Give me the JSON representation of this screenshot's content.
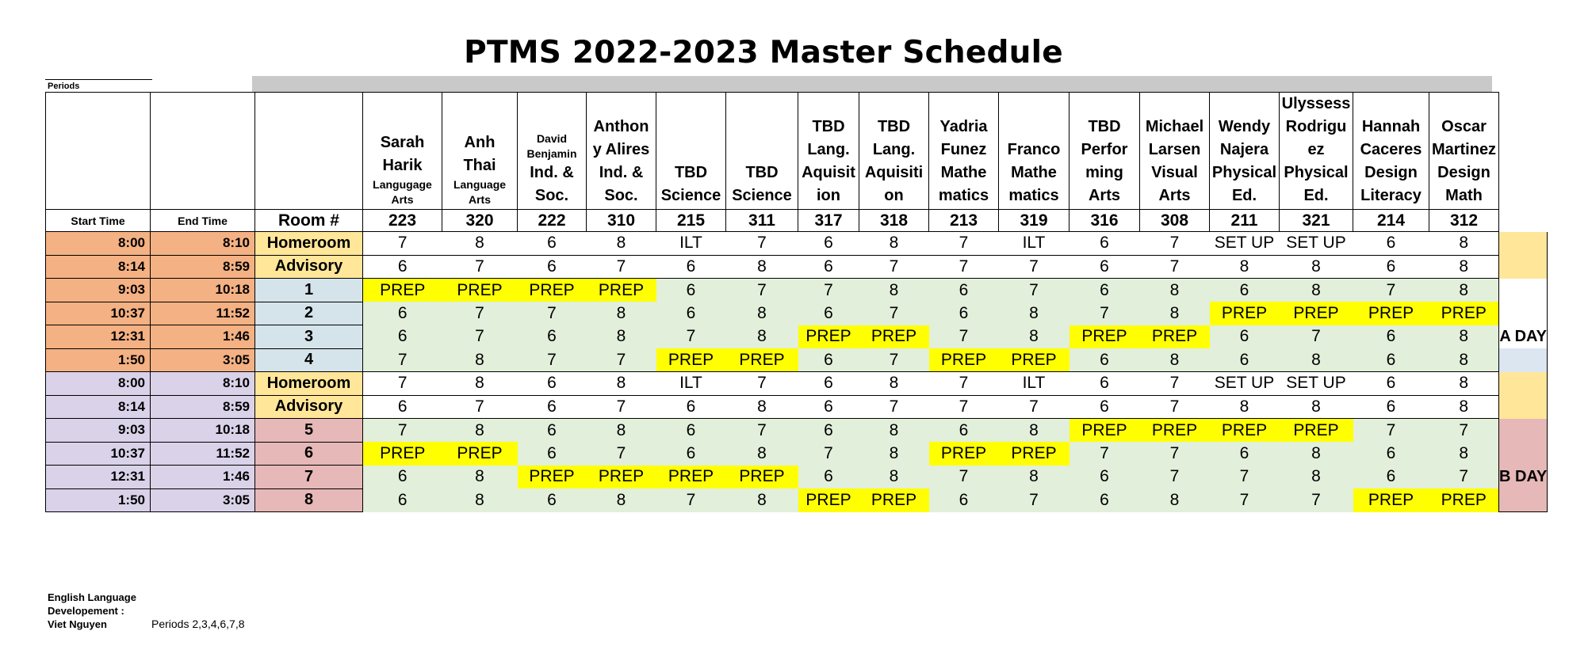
{
  "title": "PTMS 2022-2023 Master Schedule",
  "periods_label": "Periods",
  "headers": {
    "start_time": "Start Time",
    "end_time": "End Time",
    "room": "Room #"
  },
  "teachers": [
    {
      "lines": [
        "Sarah",
        "Harik"
      ],
      "subject": [
        "Langugage",
        "Arts"
      ],
      "room": "223"
    },
    {
      "lines": [
        "Anh",
        "Thai"
      ],
      "subject": [
        "Language",
        "Arts"
      ],
      "room": "320"
    },
    {
      "small_top": "David",
      "small_mid": "Benjamin",
      "lines": [
        "Ind. &",
        "Soc."
      ],
      "room": "222"
    },
    {
      "lines": [
        "Anthon",
        "y Alires",
        "Ind. &",
        "Soc."
      ],
      "room": "310"
    },
    {
      "lines": [
        "TBD",
        "Science"
      ],
      "room": "215"
    },
    {
      "lines": [
        "TBD",
        "Science"
      ],
      "room": "311"
    },
    {
      "lines": [
        "TBD",
        "Lang.",
        "Aquisit",
        "ion"
      ],
      "room": "317"
    },
    {
      "lines": [
        "TBD",
        "Lang.",
        "Aquisiti",
        "on"
      ],
      "room": "318"
    },
    {
      "lines": [
        "Yadria",
        "Funez",
        "Mathe",
        "matics"
      ],
      "room": "213"
    },
    {
      "lines": [
        "Franco",
        "Mathe",
        "matics"
      ],
      "room": "319"
    },
    {
      "lines": [
        "TBD",
        "Perfor",
        "ming",
        "Arts"
      ],
      "room": "316"
    },
    {
      "lines": [
        "Michael",
        "Larsen",
        "Visual",
        "Arts"
      ],
      "room": "308"
    },
    {
      "lines": [
        "Wendy",
        "Najera",
        "Physical",
        "Ed."
      ],
      "room": "211"
    },
    {
      "lines": [
        "Ulyssess",
        "Rodrigu",
        "ez",
        "Physical",
        "Ed."
      ],
      "room": "321"
    },
    {
      "lines": [
        "Hannah",
        "Caceres",
        "Design",
        "Literacy"
      ],
      "room": "214"
    },
    {
      "lines": [
        "Oscar",
        "Martinez",
        "Design",
        "Math"
      ],
      "room": "312"
    }
  ],
  "rows": [
    {
      "start": "8:00",
      "end": "8:10",
      "period": "Homeroom",
      "day": "A",
      "kind": "homeroom",
      "cells": [
        "7",
        "8",
        "6",
        "8",
        "ILT",
        "7",
        "6",
        "8",
        "7",
        "ILT",
        "6",
        "7",
        "SET UP",
        "SET UP",
        "6",
        "8"
      ]
    },
    {
      "start": "8:14",
      "end": "8:59",
      "period": "Advisory",
      "day": "A",
      "kind": "advisory",
      "cells": [
        "6",
        "7",
        "6",
        "7",
        "6",
        "8",
        "6",
        "7",
        "7",
        "7",
        "6",
        "7",
        "8",
        "8",
        "6",
        "8"
      ]
    },
    {
      "start": "9:03",
      "end": "10:18",
      "period": "1",
      "day": "A",
      "kind": "period",
      "cells": [
        "PREP",
        "PREP",
        "PREP",
        "PREP",
        "6",
        "7",
        "7",
        "8",
        "6",
        "7",
        "6",
        "8",
        "6",
        "8",
        "7",
        "8"
      ]
    },
    {
      "start": "10:37",
      "end": "11:52",
      "period": "2",
      "day": "A",
      "kind": "period",
      "cells": [
        "6",
        "7",
        "7",
        "8",
        "6",
        "8",
        "6",
        "7",
        "6",
        "8",
        "7",
        "8",
        "PREP",
        "PREP",
        "PREP",
        "PREP"
      ]
    },
    {
      "start": "12:31",
      "end": "1:46",
      "period": "3",
      "day": "A",
      "kind": "period",
      "cells": [
        "6",
        "7",
        "6",
        "8",
        "7",
        "8",
        "PREP",
        "PREP",
        "7",
        "8",
        "PREP",
        "PREP",
        "6",
        "7",
        "6",
        "8"
      ]
    },
    {
      "start": "1:50",
      "end": "3:05",
      "period": "4",
      "day": "A",
      "kind": "period",
      "cells": [
        "7",
        "8",
        "7",
        "7",
        "PREP",
        "PREP",
        "6",
        "7",
        "PREP",
        "PREP",
        "6",
        "8",
        "6",
        "8",
        "6",
        "8"
      ]
    },
    {
      "start": "8:00",
      "end": "8:10",
      "period": "Homeroom",
      "day": "B",
      "kind": "homeroom",
      "cells": [
        "7",
        "8",
        "6",
        "8",
        "ILT",
        "7",
        "6",
        "8",
        "7",
        "ILT",
        "6",
        "7",
        "SET UP",
        "SET UP",
        "6",
        "8"
      ]
    },
    {
      "start": "8:14",
      "end": "8:59",
      "period": "Advisory",
      "day": "B",
      "kind": "advisory",
      "cells": [
        "6",
        "7",
        "6",
        "7",
        "6",
        "8",
        "6",
        "7",
        "7",
        "7",
        "6",
        "7",
        "8",
        "8",
        "6",
        "8"
      ]
    },
    {
      "start": "9:03",
      "end": "10:18",
      "period": "5",
      "day": "B",
      "kind": "period",
      "cells": [
        "7",
        "8",
        "6",
        "8",
        "6",
        "7",
        "6",
        "8",
        "6",
        "8",
        "PREP",
        "PREP",
        "PREP",
        "PREP",
        "7",
        "7"
      ]
    },
    {
      "start": "10:37",
      "end": "11:52",
      "period": "6",
      "day": "B",
      "kind": "period",
      "cells": [
        "PREP",
        "PREP",
        "6",
        "7",
        "6",
        "8",
        "7",
        "8",
        "PREP",
        "PREP",
        "7",
        "7",
        "6",
        "8",
        "6",
        "8"
      ]
    },
    {
      "start": "12:31",
      "end": "1:46",
      "period": "7",
      "day": "B",
      "kind": "period",
      "cells": [
        "6",
        "8",
        "PREP",
        "PREP",
        "PREP",
        "PREP",
        "6",
        "8",
        "7",
        "8",
        "6",
        "7",
        "7",
        "8",
        "6",
        "7"
      ]
    },
    {
      "start": "1:50",
      "end": "3:05",
      "period": "8",
      "day": "B",
      "kind": "period",
      "cells": [
        "6",
        "8",
        "6",
        "8",
        "7",
        "8",
        "PREP",
        "PREP",
        "6",
        "7",
        "6",
        "8",
        "7",
        "7",
        "PREP",
        "PREP"
      ]
    }
  ],
  "day_labels": {
    "a": "A DAY",
    "b": "B DAY"
  },
  "footer": {
    "lines": [
      "English Language",
      "Developement :",
      "Viet Nguyen"
    ],
    "periods": "Periods 2,3,4,6,7,8"
  },
  "colors": {
    "a_day_time": "#f4b183",
    "b_day_time": "#d9d2e9",
    "homeroom_advisory": "#ffe699",
    "a_period": "#d5e4ea",
    "b_period": "#e6b8b7",
    "grid_cell": "#e2efda",
    "prep": "#ffff00",
    "a_day_side": "#dce6f1",
    "b_day_side": "#e6b8b7"
  }
}
